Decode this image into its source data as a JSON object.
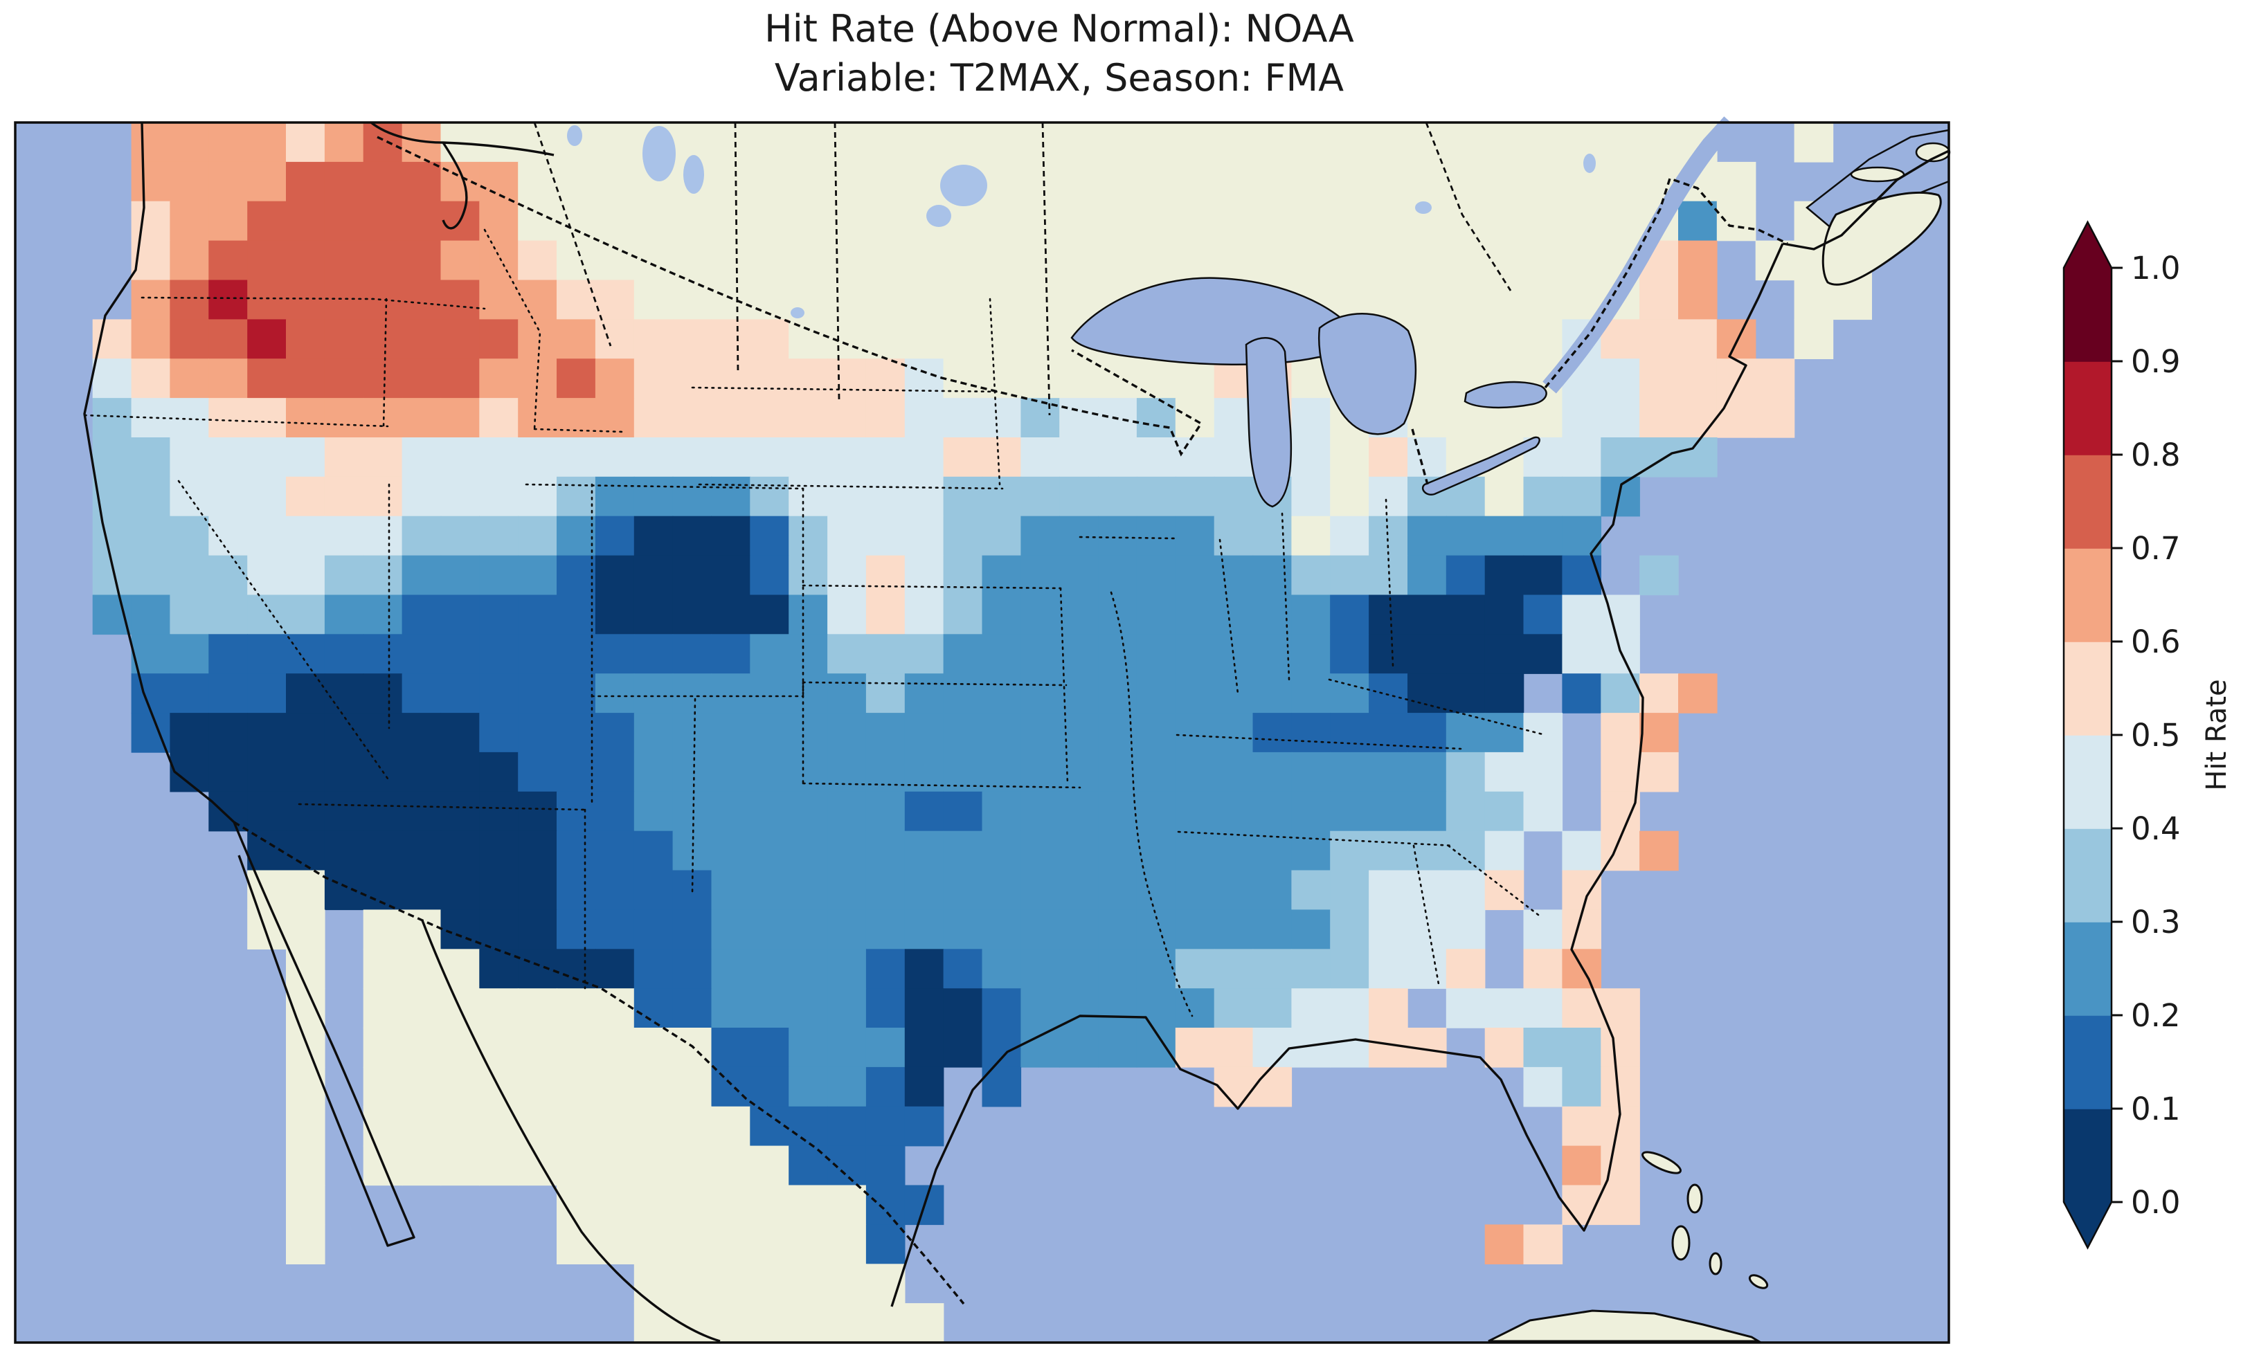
{
  "figure": {
    "title_line1": "Hit Rate (Above Normal): NOAA",
    "title_line2": "Variable: T2MAX, Season: FMA"
  },
  "colorbar": {
    "label": "Hit Rate",
    "tick_labels_top_to_bottom": [
      "1.0",
      "0.9",
      "0.8",
      "0.7",
      "0.6",
      "0.5",
      "0.4",
      "0.3",
      "0.2",
      "0.1",
      "0.0"
    ],
    "bin_edges": [
      0.0,
      0.1,
      0.2,
      0.3,
      0.4,
      0.5,
      0.6,
      0.7,
      0.8,
      0.9,
      1.0
    ],
    "bin_colors_low_to_high": [
      "#09386d",
      "#2166ac",
      "#4994c4",
      "#99c6de",
      "#d7e8f0",
      "#fbdcc9",
      "#f4a683",
      "#d6604d",
      "#b2182b",
      "#67001f"
    ],
    "extend": "both"
  },
  "map": {
    "ocean_color": "#9ab1de",
    "land_color": "#eef0dc",
    "small_lake_color": "#a9c2e8",
    "line_color": "#0d0d0d",
    "cell_legend": {
      "~": "water",
      ".": "non-US land",
      "digit": "hit-rate bin index: 0 = 0.0-0.1 ... 9 = 0.9-1.0"
    },
    "grid_cols": 50,
    "grid_rows_count": 31,
    "grid_rows": [
      "~~~66665676.................................~~.~~~",
      "~~~6666777766................................~~~~~",
      "~~~5667777776..............................2.~..~~",
      "~~~56777777665............................56~...~~",
      "~~~6787777776655..........................56~~..~~",
      "~~567787777776655555...........65.......45556~.~~~",
      "~~4566777777667655555554.......55.......445555~~~~",
      "~~3445566666566655555554443443.454.4....445555~~~~",
      "~~33444455444444444444445544444444.54..44333~~~~~~",
      "~~33444555444432222344443333333334.433.332~~~~~~~~",
      "~~3334444433332100013444332222233.4322222~~~~~~~~~",
      "~~333344332222100001345432222222233321001 3~~~~~~~~",
      "~~2233332211111000002454322222222210000144~~~~~~~~",
      "~~~221111111111111122333222222222210000044~~~~~~~~",
      "~~~111100011111222222232222222222221000 1356~~~~~~~",
      "~~~1000000001111222222222222222211111224 56~~~~~~~~",
      "~~~~000000000111222222222222222222222344 55~~~~~~~~",
      "~~~~~00000000011222222211222222222222334 5~~~~~~~~~",
      "~~~~~~000000001112222222222222222233334 456~~~~~~~~",
      "~~~~~~..0000001111222222222222222334445 5~~~~~~~~~~",
      "~~~~~~..~..000111122222222222222223444 45~~~~~~~~~~",
      "~~~~~~~.~...00001122221012222233333445 56~~~~~~~~~~",
      "~~~~~~~.~.......11222210012222233445 44455~~~~~~~~~",
      "~~~~~~~.~.........1122200122225544455 5335~~~~~~~~~",
      "~~~~~~~.~.........112210 1~~~~~55~~~~~~435~~~~~~~~~",
      "~~~~~~~.~..........11111~~~~~~~~~~~~~~~ 55~~~~~~~~~",
      "~~~~~~~.~...........111~~~~~~~~~~~~~~~~ 65~~~~~~~~~",
      "~~~~~~~.~~~~~~........11~~~~~~~~~~~~~~~ 55~~~~~~~~~",
      "~~~~~~~.~~~~~~........1~~~~~~~~~~~~~~~65 ~~~~~~~~~~",
      "~~~~~~~~~~~~~~~~.......~~~~~~~~~~~~~~~~~~~~~~~~~~~",
      "~~~~~~~~~~~~~~~~........~~~~~~~~~~~~~~~~~~~~~~~~~~"
    ]
  },
  "chart_data": {
    "type": "heatmap",
    "title": "Hit Rate (Above Normal): NOAA",
    "subtitle": "Variable: T2MAX, Season: FMA",
    "source_label": "NOAA",
    "variable": "T2MAX",
    "season": "FMA",
    "metric": "Hit Rate (Above Normal)",
    "colorbar_label": "Hit Rate",
    "value_range": [
      0.0,
      1.0
    ],
    "bin_size": 0.1,
    "colormap": "RdBu reversed, 10 discrete bins, pointed over/under arrows",
    "projection": "Lambert-conformal style map of contiguous United States",
    "grid_note": "map.grid_rows encodes the binned field: digits are bin indices (0 lowest 0.0-0.1, 9 highest 0.9-1.0), '.' non-US land, '~' water",
    "regions_summary": [
      "Pacific Northwest (WA, OR, ID, western MT): high hit rate 0.6-0.9 (red/orange)",
      "Northern plains and upper Midwest (eastern MT, ND, SD, MN, WI, northern MI): 0.5-0.6 (pale pink)",
      "Southwest (CA, NV, AZ, UT, western CO, western NM): very low 0.0-0.1 (dark navy)",
      "Central/southern plains, Midwest, mid-South: 0.2-0.3 (steel blue)",
      "Kentucky / West Virginia Appalachian pocket: 0.0-0.1 (dark navy)",
      "Central-south Texas corridor: 0.0-0.2 (navy streak)",
      "Small pale/pink pocket on western KS-NE border: 0.4-0.6",
      "Atlantic seaboard VA-NC-SC, coastal Maine, Florida peninsula, New Orleans coast: 0.4-0.7 with 0.6-0.7 salmon spots"
    ]
  }
}
